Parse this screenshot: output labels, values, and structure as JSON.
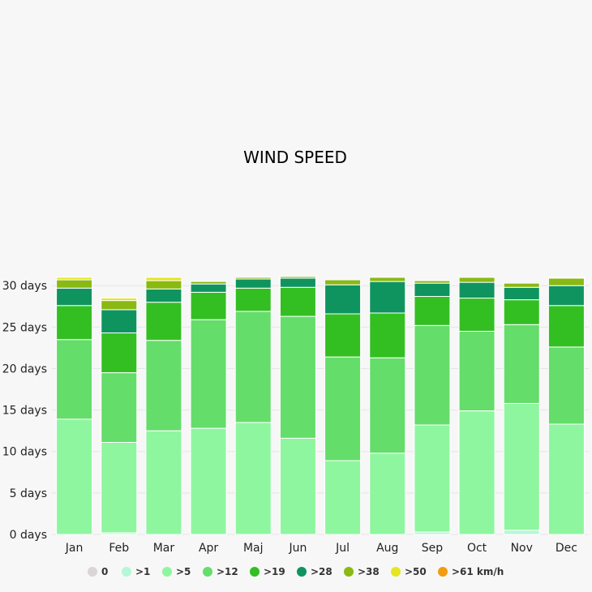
{
  "chart_data": {
    "type": "bar",
    "stacked": true,
    "title": "WIND SPEED",
    "categories": [
      "Jan",
      "Feb",
      "Mar",
      "Apr",
      "Maj",
      "Jun",
      "Jul",
      "Aug",
      "Sep",
      "Oct",
      "Nov",
      "Dec"
    ],
    "y_ticks": [
      "0 days",
      "5 days",
      "10 days",
      "15 days",
      "20 days",
      "25 days",
      "30 days"
    ],
    "ylim": [
      0,
      31
    ],
    "grid": true,
    "legend_position": "bottom",
    "series": [
      {
        "name": "0",
        "color": "#d9d5d5",
        "values": [
          0,
          0,
          0,
          0,
          0,
          0,
          0,
          0,
          0,
          0,
          0,
          0
        ]
      },
      {
        "name": ">1",
        "color": "#b4f7d9",
        "values": [
          0,
          0.2,
          0,
          0,
          0,
          0,
          0,
          0,
          0.3,
          0,
          0.5,
          0
        ]
      },
      {
        "name": ">5",
        "color": "#8ef69f",
        "values": [
          13.9,
          10.9,
          12.5,
          12.8,
          13.5,
          11.6,
          8.9,
          9.8,
          12.9,
          14.9,
          15.3,
          13.3
        ]
      },
      {
        "name": ">12",
        "color": "#64dd6a",
        "values": [
          9.6,
          8.4,
          10.9,
          13.1,
          13.4,
          14.7,
          12.5,
          11.5,
          12.0,
          9.6,
          9.5,
          9.3
        ]
      },
      {
        "name": ">19",
        "color": "#33bf22",
        "values": [
          4.1,
          4.8,
          4.6,
          3.3,
          2.8,
          3.5,
          5.2,
          5.4,
          3.5,
          4.0,
          3.0,
          5.0
        ]
      },
      {
        "name": ">28",
        "color": "#0f9460",
        "values": [
          2.1,
          2.8,
          1.6,
          1.0,
          1.1,
          1.1,
          3.5,
          3.8,
          1.6,
          1.9,
          1.5,
          2.4
        ]
      },
      {
        "name": ">38",
        "color": "#8ab913",
        "values": [
          1.0,
          1.1,
          1.0,
          0.3,
          0.2,
          0.2,
          0.6,
          0.5,
          0.3,
          0.6,
          0.5,
          0.9
        ]
      },
      {
        "name": ">50",
        "color": "#e5e522",
        "values": [
          0.3,
          0.3,
          0.4,
          0,
          0,
          0,
          0,
          0,
          0,
          0,
          0,
          0.1
        ]
      },
      {
        "name": ">61 km/h",
        "color": "#f39c12",
        "values": [
          0,
          0,
          0,
          0,
          0,
          0,
          0,
          0,
          0,
          0,
          0,
          0
        ]
      }
    ]
  }
}
